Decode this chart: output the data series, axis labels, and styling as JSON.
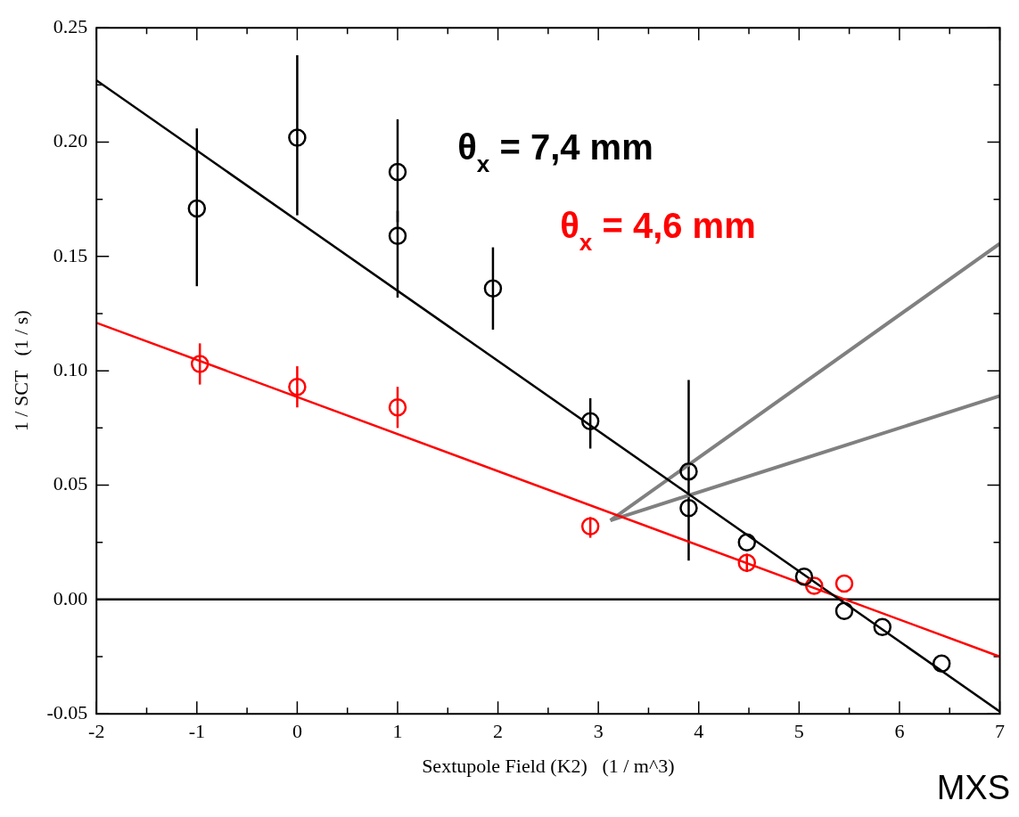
{
  "chart_data": {
    "type": "scatter",
    "xlabel": "Sextupole Field (K2)   (1 / m^3)",
    "ylabel": "1 / SCT   (1 / s)",
    "xlim": [
      -2,
      7
    ],
    "xticks": [
      -2,
      -1,
      0,
      1,
      2,
      3,
      4,
      5,
      6,
      7
    ],
    "ylim": [
      -0.05,
      0.25
    ],
    "yticks": [
      {
        "value": -0.05,
        "label": "-0.05"
      },
      {
        "value": 0,
        "label": "0.00"
      },
      {
        "value": 0.05,
        "label": "0.05"
      },
      {
        "value": 0.1,
        "label": "0.10"
      },
      {
        "value": 0.15,
        "label": "0.15"
      },
      {
        "value": 0.2,
        "label": "0.20"
      },
      {
        "value": 0.25,
        "label": "0.25"
      }
    ],
    "grid": false,
    "legend": false,
    "ref_lines": [
      {
        "axis": "y",
        "value": 0,
        "color": "#000000"
      }
    ],
    "annotations": [
      "MXS"
    ],
    "series": [
      {
        "name": "θ$_{x}$ = 7,4 mm",
        "color": "#000000",
        "marker": "circle",
        "x": [
          -1,
          0,
          1,
          1,
          1.95,
          2.92,
          3.9,
          3.9,
          4.48,
          5.05,
          5.45,
          5.83,
          6.42
        ],
        "values": [
          0.171,
          0.202,
          0.187,
          0.159,
          0.136,
          0.078,
          0.056,
          0.04,
          0.025,
          0.01,
          -0.005,
          -0.012,
          -0.028
        ],
        "errors": [
          [
            0.137,
            0.206
          ],
          [
            0.168,
            0.238
          ],
          [
            0.165,
            0.21
          ],
          [
            0.132,
            0.17
          ],
          [
            0.118,
            0.154
          ],
          [
            0.066,
            0.088
          ],
          [
            0.017,
            0.096
          ],
          null,
          null,
          null,
          null,
          null,
          null
        ]
      },
      {
        "name": "θ$_{x}$ = 4,6 mm",
        "color": "#ff0000",
        "marker": "circle",
        "x": [
          -0.97,
          0,
          1,
          2.92,
          4.48,
          5.15,
          5.45
        ],
        "values": [
          0.103,
          0.093,
          0.084,
          0.032,
          0.016,
          0.006,
          0.007
        ],
        "errors": [
          [
            0.094,
            0.112
          ],
          [
            0.084,
            0.102
          ],
          [
            0.075,
            0.093
          ],
          [
            0.027,
            0.036
          ],
          [
            0.012,
            0.02
          ],
          null,
          null
        ]
      },
      {
        "color": "#000000",
        "type": "line",
        "marker": "none",
        "x": [
          -2,
          7
        ],
        "values": [
          0.227,
          -0.049
        ]
      },
      {
        "color": "#ff0000",
        "type": "line",
        "marker": "none",
        "x": [
          -2,
          7
        ],
        "values": [
          0.121,
          -0.025
        ]
      },
      {
        "color": "#808080",
        "type": "line",
        "marker": "none",
        "x": [
          3.12,
          7
        ],
        "values": [
          0.0346,
          0.1556
        ]
      },
      {
        "color": "#808080",
        "type": "line",
        "marker": "none",
        "x": [
          3.12,
          7
        ],
        "values": [
          0.0346,
          0.089
        ]
      }
    ]
  }
}
